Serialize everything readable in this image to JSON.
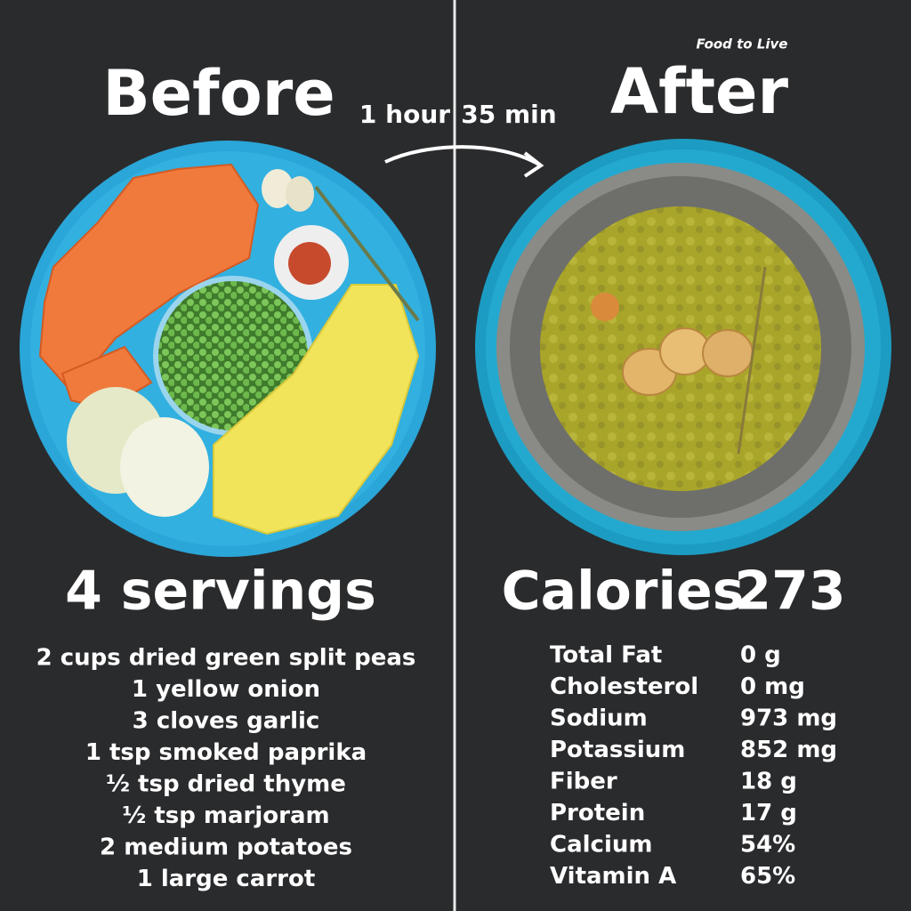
{
  "brand": "Food to Live",
  "before": {
    "title": "Before",
    "servings": "4 servings",
    "ingredients": [
      "2 cups dried green split peas",
      "1 yellow onion",
      "3 cloves garlic",
      "1 tsp smoked paprika",
      "½ tsp dried thyme",
      "½ tsp marjoram",
      "2 medium potatoes",
      "1 large carrot"
    ]
  },
  "time": {
    "hours": "1 hour",
    "minutes": "35 min"
  },
  "after": {
    "title": "After",
    "calories_label": "Calories",
    "calories": 273,
    "nutrients": [
      {
        "name": "Total Fat",
        "amount": "0 g"
      },
      {
        "name": "Cholesterol",
        "amount": "0 mg"
      },
      {
        "name": "Sodium",
        "amount": "973 mg"
      },
      {
        "name": "Potassium",
        "amount": "852 mg"
      },
      {
        "name": "Fiber",
        "amount": "18 g"
      },
      {
        "name": "Protein",
        "amount": "17 g"
      },
      {
        "name": "Calcium",
        "amount": "54%"
      },
      {
        "name": "Vitamin A",
        "amount": "65%"
      }
    ]
  }
}
